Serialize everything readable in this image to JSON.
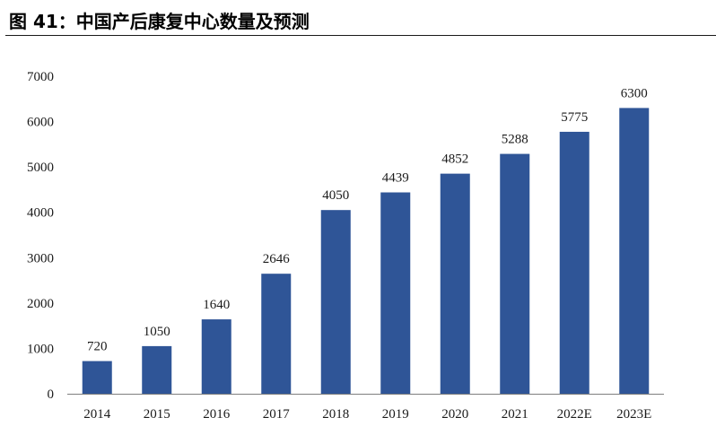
{
  "figure_title": "图 41：中国产后康复中心数量及预测",
  "chart_data": {
    "type": "bar",
    "categories": [
      "2014",
      "2015",
      "2016",
      "2017",
      "2018",
      "2019",
      "2020",
      "2021",
      "2022E",
      "2023E"
    ],
    "values": [
      720,
      1050,
      1640,
      2646,
      4050,
      4439,
      4852,
      5288,
      5775,
      6300
    ],
    "data_labels": [
      "720",
      "1050",
      "1640",
      "2646",
      "4050",
      "4439",
      "4852",
      "5288",
      "5775",
      "6300"
    ],
    "ylim": [
      0,
      7000
    ],
    "yticks": [
      0,
      1000,
      2000,
      3000,
      4000,
      5000,
      6000,
      7000
    ],
    "ytick_labels": [
      "0",
      "1000",
      "2000",
      "3000",
      "4000",
      "5000",
      "6000",
      "7000"
    ],
    "grid": false,
    "legend": "none",
    "bar_color": "#2f5597"
  }
}
